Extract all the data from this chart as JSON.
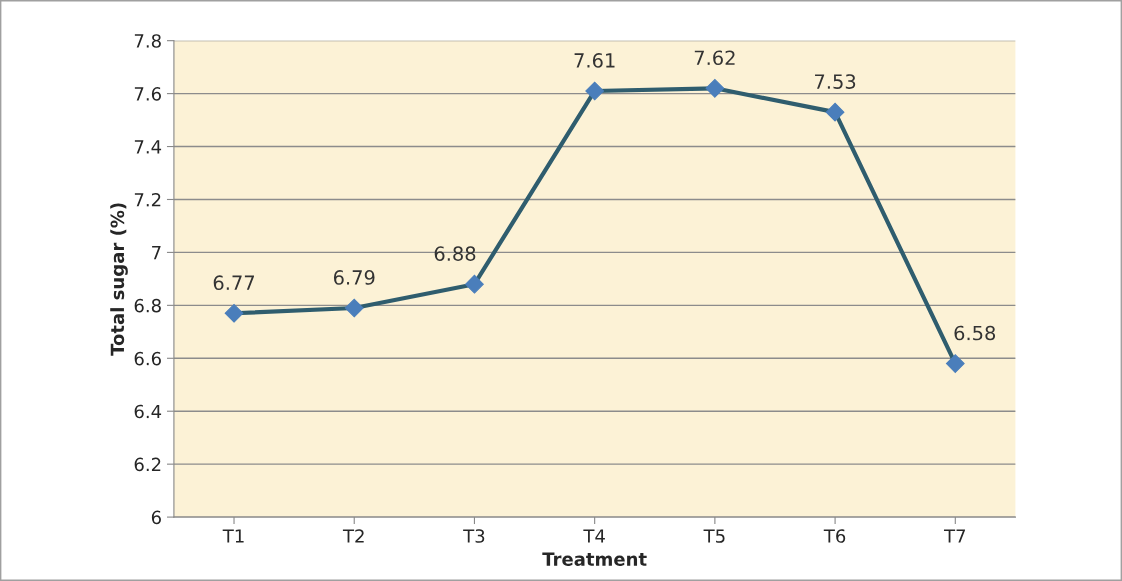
{
  "chart_data": {
    "type": "line",
    "xlabel": "Treatment",
    "ylabel": "Total sugar (%)",
    "categories": [
      "T1",
      "T2",
      "T3",
      "T4",
      "T5",
      "T6",
      "T7"
    ],
    "series": [
      {
        "color": "#2f5d6e",
        "values": [
          6.77,
          6.79,
          6.88,
          7.61,
          7.62,
          7.53,
          6.58
        ]
      }
    ],
    "ylim": [
      6,
      7.8
    ],
    "yticks": [
      6,
      6.2,
      6.4,
      6.6,
      6.8,
      7,
      7.2,
      7.4,
      7.6,
      7.8
    ],
    "grid": "y",
    "marker": "diamond",
    "line_style": "solid",
    "data_labels": true
  }
}
